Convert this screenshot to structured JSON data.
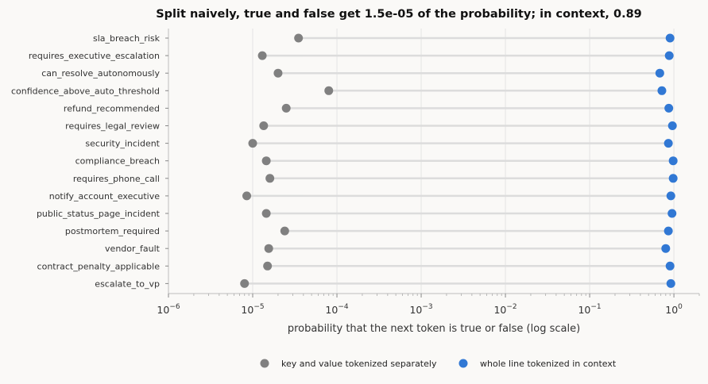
{
  "chart_data": {
    "type": "scatter",
    "title": "Split naively, true and false get 1.5e-05 of the probability; in context, 0.89",
    "xlabel": "probability that the next token is true or false (log scale)",
    "ylabel": "",
    "xscale": "log",
    "xlim": [
      1e-06,
      2.0
    ],
    "x_ticks": [
      {
        "value": 1e-06,
        "base": "10",
        "exp": "−6"
      },
      {
        "value": 1e-05,
        "base": "10",
        "exp": "−5"
      },
      {
        "value": 0.0001,
        "base": "10",
        "exp": "−4"
      },
      {
        "value": 0.001,
        "base": "10",
        "exp": "−3"
      },
      {
        "value": 0.01,
        "base": "10",
        "exp": "−2"
      },
      {
        "value": 0.1,
        "base": "10",
        "exp": "−1"
      },
      {
        "value": 1,
        "base": "10",
        "exp": "0"
      }
    ],
    "grid": "vertical major gridlines",
    "legend_position": "bottom",
    "categories": [
      "sla_breach_risk",
      "requires_executive_escalation",
      "can_resolve_autonomously",
      "confidence_above_auto_threshold",
      "refund_recommended",
      "requires_legal_review",
      "security_incident",
      "compliance_breach",
      "requires_phone_call",
      "notify_account_executive",
      "public_status_page_incident",
      "postmortem_required",
      "vendor_fault",
      "contract_penalty_applicable",
      "escalate_to_vp"
    ],
    "series": [
      {
        "name": "key and value tokenized separately",
        "color": "#808080",
        "values": [
          3.5e-05,
          1.3e-05,
          2e-05,
          8e-05,
          2.5e-05,
          1.35e-05,
          1e-05,
          1.45e-05,
          1.6e-05,
          8.5e-06,
          1.45e-05,
          2.4e-05,
          1.55e-05,
          1.5e-05,
          8e-06
        ]
      },
      {
        "name": "whole line tokenized in context",
        "color": "#3178d4",
        "values": [
          0.9,
          0.88,
          0.68,
          0.72,
          0.87,
          0.96,
          0.86,
          0.98,
          0.98,
          0.92,
          0.95,
          0.86,
          0.8,
          0.9,
          0.92
        ]
      }
    ]
  }
}
